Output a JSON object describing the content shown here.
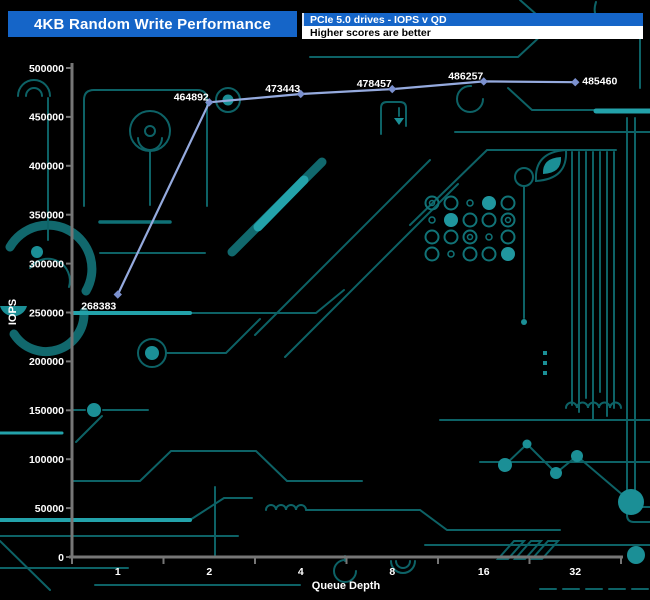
{
  "header": {
    "title": "4KB Random Write Performance",
    "subtitle": "PCIe 5.0 drives - IOPS v QD",
    "note": "Higher scores are better"
  },
  "colors": {
    "header_blue": "#1565c8",
    "line": "#95aade",
    "marker": "#7b90ce",
    "axis": "#767676",
    "text": "#ffffff",
    "background": "#000000",
    "trace_teal": "#0d6266",
    "trace_bright": "#23a2aa"
  },
  "chart_data": {
    "type": "line",
    "title": "4KB Random Write Performance",
    "xlabel": "Queue Depth",
    "ylabel": "IOPS",
    "categories": [
      "1",
      "2",
      "4",
      "8",
      "16",
      "32"
    ],
    "series": [
      {
        "name": "PCIe 5.0 drive",
        "values": [
          268383,
          464892,
          473443,
          478457,
          486257,
          485460
        ]
      }
    ],
    "point_labels": [
      "268383",
      "464892",
      "473443",
      "478457",
      "486257",
      "485460"
    ],
    "ylim": [
      0,
      500000
    ],
    "ytick_step": 50000,
    "grid": false,
    "legend_position": "none"
  }
}
